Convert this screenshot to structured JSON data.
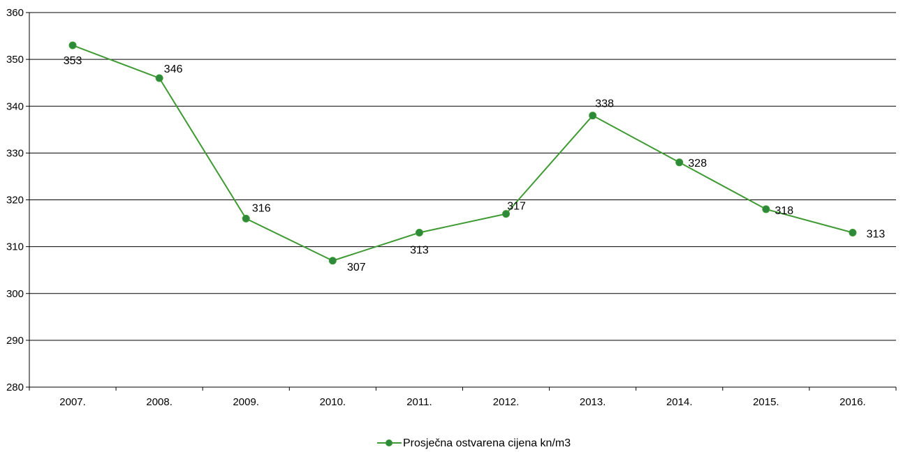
{
  "chart_data": {
    "type": "line",
    "categories": [
      "2007.",
      "2008.",
      "2009.",
      "2010.",
      "2011.",
      "2012.",
      "2013.",
      "2014.",
      "2015.",
      "2016."
    ],
    "series": [
      {
        "name": "Prosječna ostvarena cijena kn/m3",
        "values": [
          353,
          346,
          316,
          307,
          313,
          317,
          338,
          328,
          318,
          313
        ],
        "color": "#3f9a33",
        "marker_color": "#2c8a3a"
      }
    ],
    "data_labels": [
      "353",
      "346",
      "316",
      "307",
      "313",
      "317",
      "338",
      "328",
      "318",
      "313"
    ],
    "y_ticks": [
      "280",
      "290",
      "300",
      "310",
      "320",
      "330",
      "340",
      "350",
      "360"
    ],
    "ylim": [
      280,
      360
    ],
    "y_step": 10,
    "grid": "horizontal",
    "legend_position": "bottom-center",
    "title": "",
    "xlabel": "",
    "ylabel": ""
  }
}
